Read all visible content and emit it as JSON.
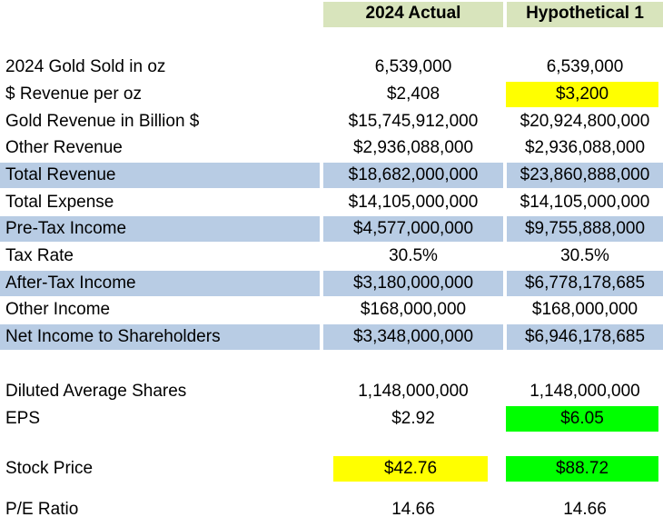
{
  "headers": {
    "actual": "2024 Actual",
    "hypothetical": "Hypothetical 1"
  },
  "rows": [
    {
      "label": "2024 Gold Sold in oz",
      "actual": "6,539,000",
      "hypo": "6,539,000"
    },
    {
      "label": "$ Revenue per oz",
      "actual": "$2,408",
      "hypo": "$3,200"
    },
    {
      "label": "Gold Revenue in Billion $",
      "actual": "$15,745,912,000",
      "hypo": "$20,924,800,000"
    },
    {
      "label": "Other Revenue",
      "actual": "$2,936,088,000",
      "hypo": "$2,936,088,000"
    },
    {
      "label": "Total Revenue",
      "actual": "$18,682,000,000",
      "hypo": "$23,860,888,000"
    },
    {
      "label": "Total Expense",
      "actual": "$14,105,000,000",
      "hypo": "$14,105,000,000"
    },
    {
      "label": "Pre-Tax Income",
      "actual": "$4,577,000,000",
      "hypo": "$9,755,888,000"
    },
    {
      "label": "Tax Rate",
      "actual": "30.5%",
      "hypo": "30.5%"
    },
    {
      "label": "After-Tax Income",
      "actual": "$3,180,000,000",
      "hypo": "$6,778,178,685"
    },
    {
      "label": "Other Income",
      "actual": "$168,000,000",
      "hypo": "$168,000,000"
    },
    {
      "label": "Net Income to Shareholders",
      "actual": "$3,348,000,000",
      "hypo": "$6,946,178,685"
    },
    {
      "label": "Diluted Average Shares",
      "actual": "1,148,000,000",
      "hypo": "1,148,000,000"
    },
    {
      "label": "EPS",
      "actual": "$2.92",
      "hypo": "$6.05"
    },
    {
      "label": "Stock Price",
      "actual": "$42.76",
      "hypo": "$88.72"
    },
    {
      "label": "P/E Ratio",
      "actual": "14.66",
      "hypo": "14.66"
    }
  ],
  "colors": {
    "header_fill": "#d8e4bc",
    "band_fill": "#b8cce4",
    "highlight_yellow": "#ffff00",
    "highlight_green": "#00ff00"
  }
}
